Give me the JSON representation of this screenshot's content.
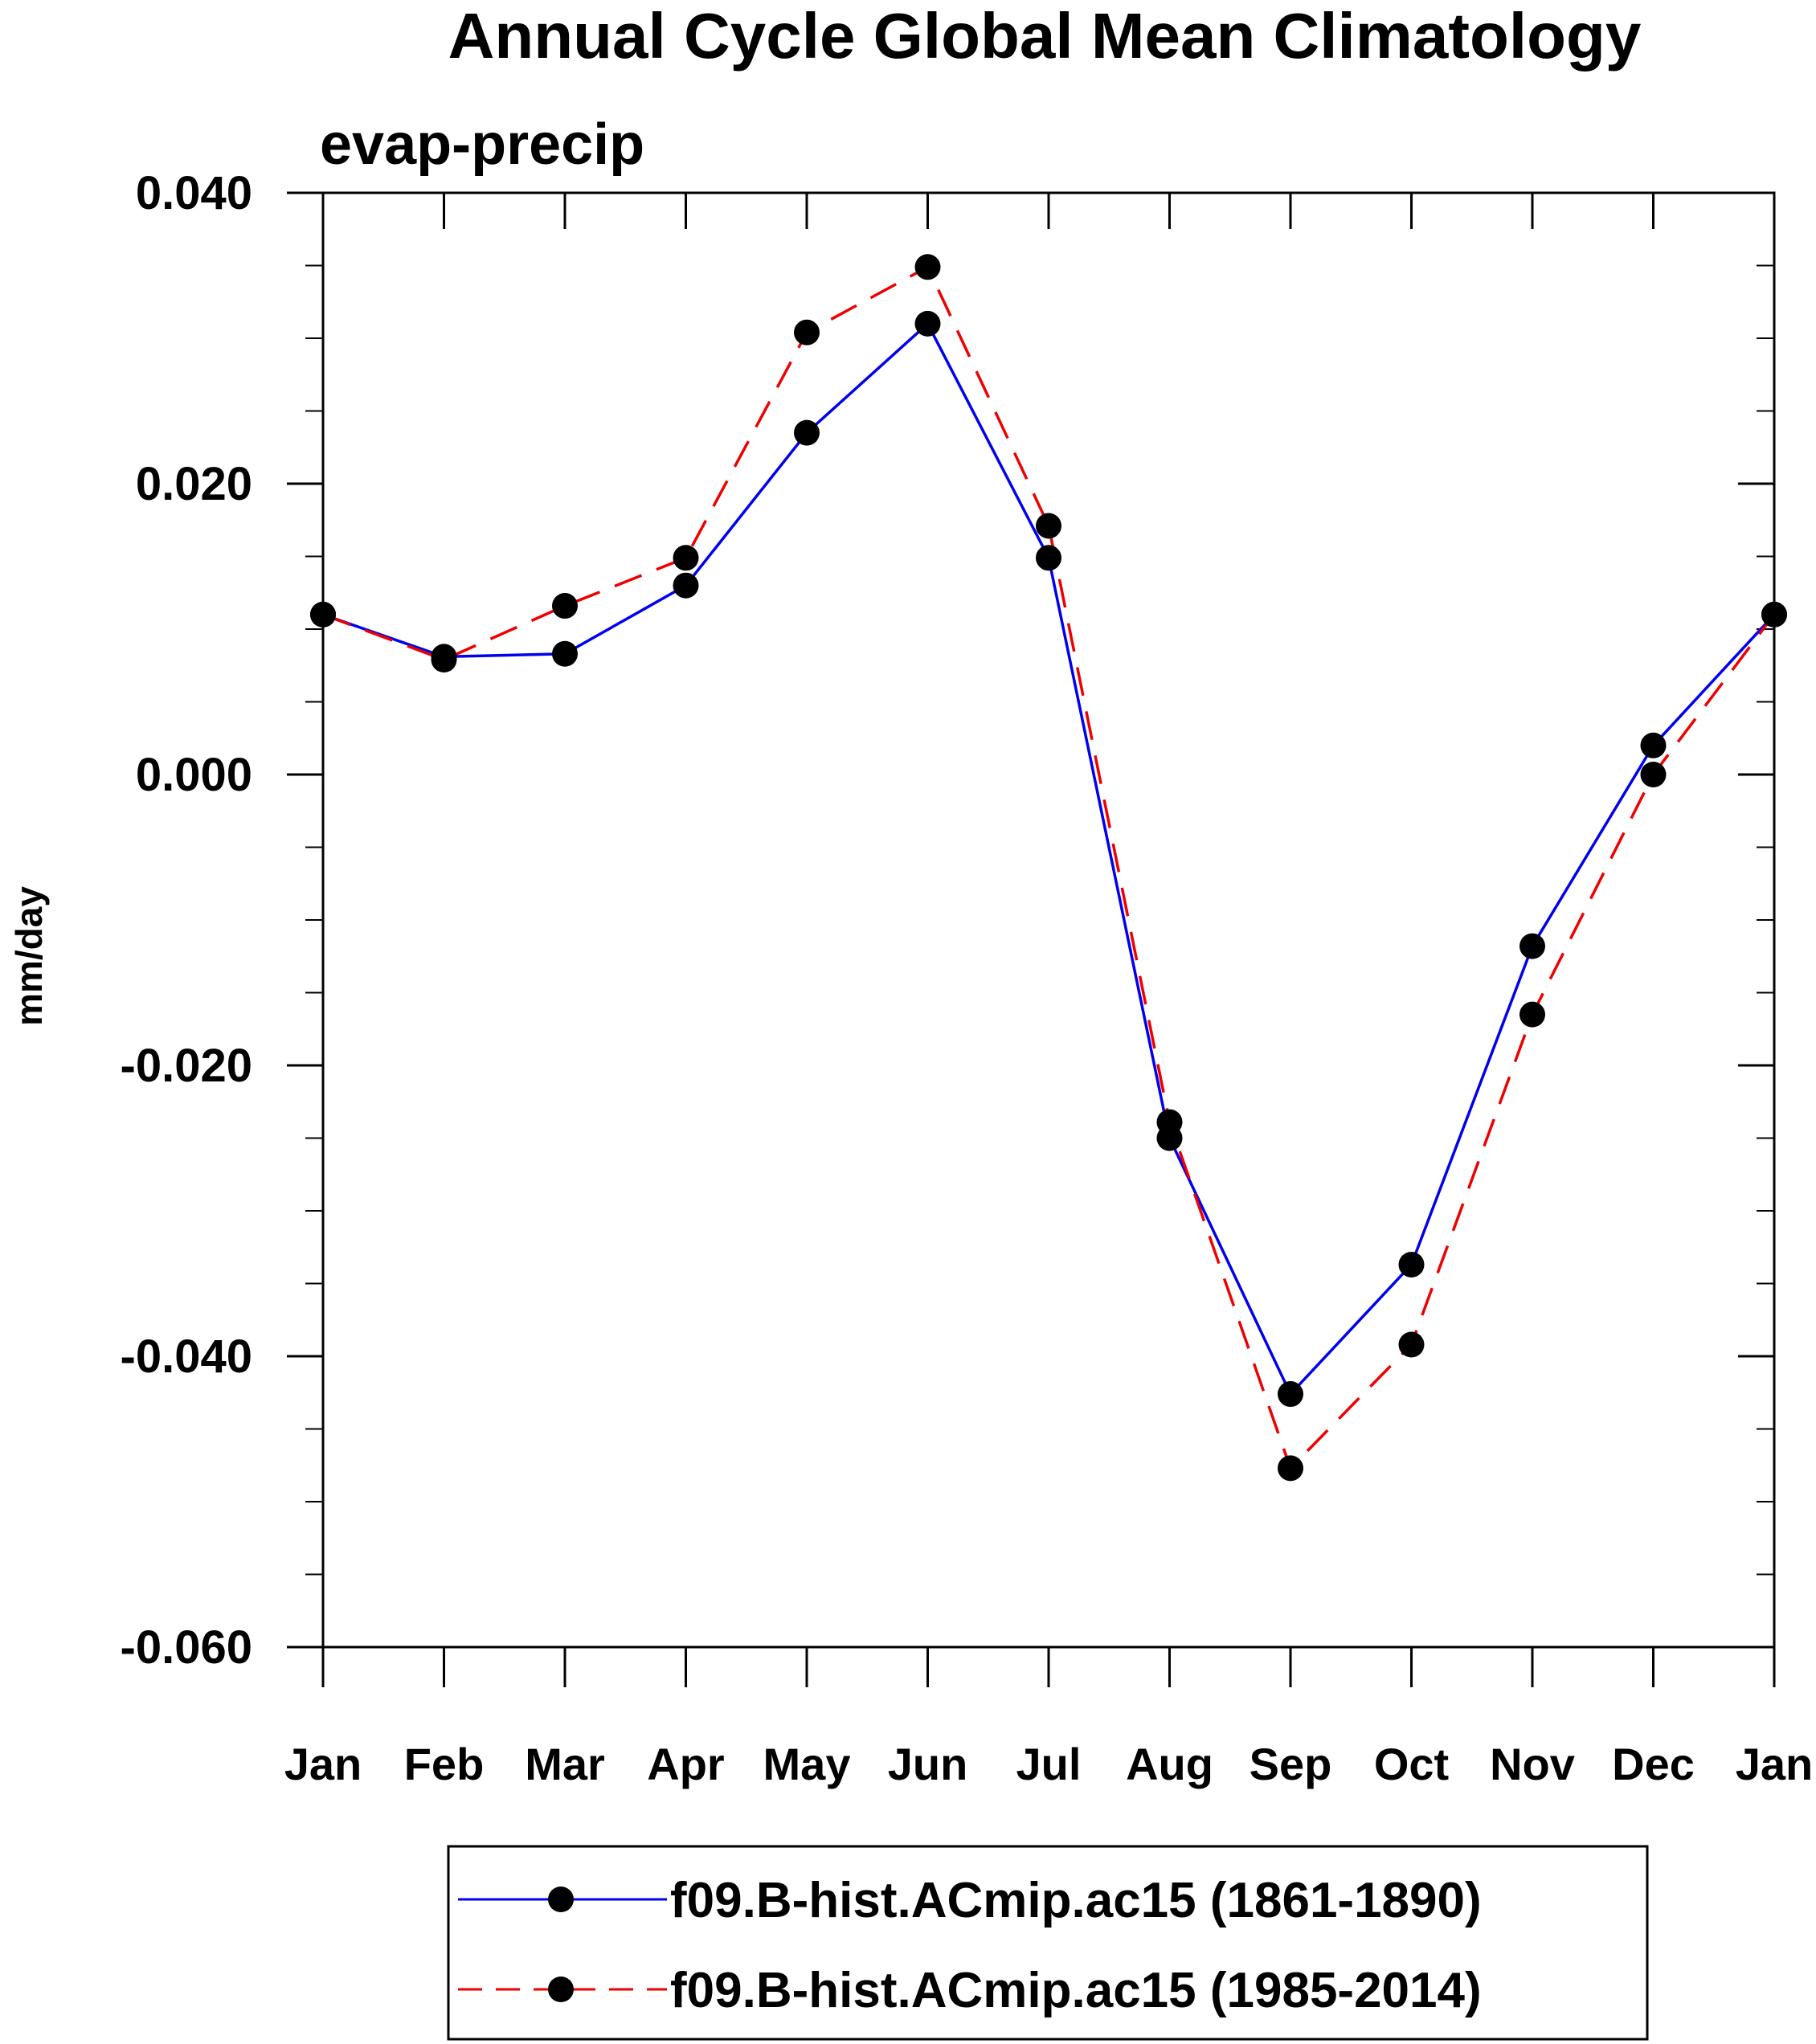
{
  "chart_data": {
    "type": "line",
    "title": "Annual Cycle Global Mean Climatology",
    "subtitle": "evap-precip",
    "xlabel": "",
    "ylabel": "mm/day",
    "categories": [
      "Jan",
      "Feb",
      "Mar",
      "Apr",
      "May",
      "Jun",
      "Jul",
      "Aug",
      "Sep",
      "Oct",
      "Nov",
      "Dec",
      "Jan"
    ],
    "ylim": [
      -0.06,
      0.04
    ],
    "yticks": [
      0.04,
      0.02,
      0.0,
      -0.02,
      -0.04,
      -0.06
    ],
    "ytick_labels": [
      "0.040",
      "0.020",
      "0.000",
      "-0.020",
      "-0.040",
      "-0.060"
    ],
    "series": [
      {
        "name": "f09.B-hist.ACmip.ac15 (1861-1890)",
        "color": "#0000ee",
        "line_style": "solid",
        "marker": "filled-circle",
        "values": [
          0.011,
          0.0081,
          0.0083,
          0.013,
          0.0235,
          0.031,
          0.0149,
          -0.025,
          -0.0426,
          -0.0337,
          -0.0118,
          0.002,
          0.011
        ]
      },
      {
        "name": "f09.B-hist.ACmip.ac15 (1985-2014)",
        "color": "#ee0000",
        "line_style": "dashed",
        "marker": "filled-circle",
        "values": [
          0.011,
          0.0079,
          0.0116,
          0.0149,
          0.0304,
          0.0349,
          0.0171,
          -0.0239,
          -0.0477,
          -0.0392,
          -0.0165,
          0.0,
          0.011
        ]
      }
    ],
    "legend_position": "bottom-center",
    "grid": false
  }
}
